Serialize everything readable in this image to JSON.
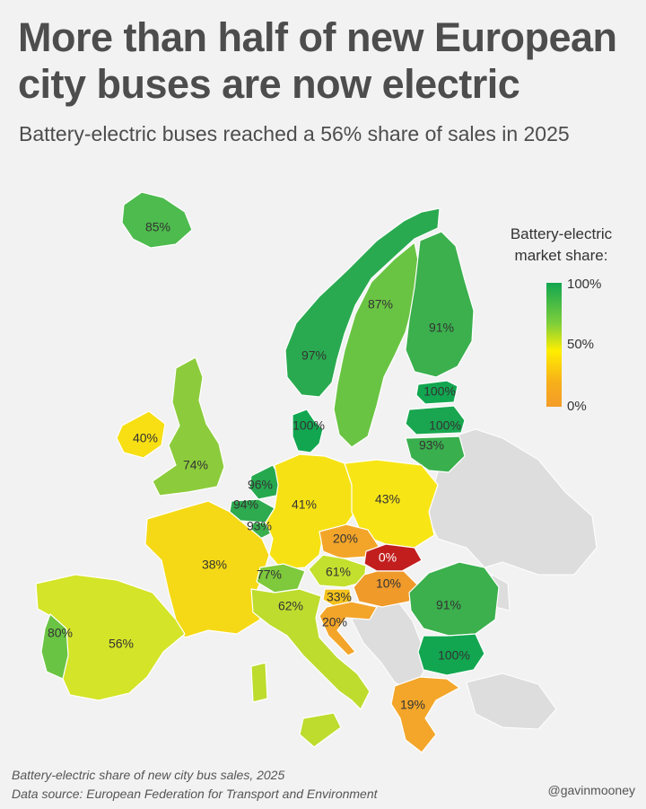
{
  "title": "More than half of new European city buses are now electric",
  "subtitle": "Battery-electric buses reached a 56% share of sales in 2025",
  "legend": {
    "title_line1": "Battery-electric",
    "title_line2": "market share:",
    "ticks": [
      "100%",
      "50%",
      "0%"
    ],
    "colors": [
      "#12a650",
      "#ffee00",
      "#f39c29"
    ]
  },
  "footer": {
    "line1": "Battery-electric share of new city bus sales, 2025",
    "line2": "Data source:  European Federation for Transport and Environment",
    "credit": "@gavinmooney"
  },
  "regions": [
    {
      "id": "iceland",
      "label": "85%",
      "color": "#4dbb4d"
    },
    {
      "id": "norway",
      "label": "97%",
      "color": "#2aaa50"
    },
    {
      "id": "sweden",
      "label": "87%",
      "color": "#6ac443"
    },
    {
      "id": "finland",
      "label": "91%",
      "color": "#3bb04d"
    },
    {
      "id": "estonia",
      "label": "100%",
      "color": "#12a650"
    },
    {
      "id": "latvia",
      "label": "100%",
      "color": "#1aa650"
    },
    {
      "id": "lithuania",
      "label": "93%",
      "color": "#3aaf4e"
    },
    {
      "id": "denmark",
      "label": "100%",
      "color": "#12a650"
    },
    {
      "id": "ireland",
      "label": "40%",
      "color": "#f7df14"
    },
    {
      "id": "uk",
      "label": "74%",
      "color": "#8ccc3c"
    },
    {
      "id": "netherlands",
      "label": "96%",
      "color": "#26a84f"
    },
    {
      "id": "belgium",
      "label": "94%",
      "color": "#2eaa4f"
    },
    {
      "id": "luxembourg",
      "label": "93%",
      "color": "#3aaf4e"
    },
    {
      "id": "germany",
      "label": "41%",
      "color": "#f6e214"
    },
    {
      "id": "poland",
      "label": "43%",
      "color": "#f8e516"
    },
    {
      "id": "france",
      "label": "38%",
      "color": "#f5d916"
    },
    {
      "id": "czechia",
      "label": "20%",
      "color": "#f3a52a"
    },
    {
      "id": "slovakia",
      "label": "0%",
      "color": "#c21e1e"
    },
    {
      "id": "austria",
      "label": "61%",
      "color": "#c4e02e"
    },
    {
      "id": "hungary",
      "label": "10%",
      "color": "#f09a2a"
    },
    {
      "id": "switzerland",
      "label": "77%",
      "color": "#7ec93c"
    },
    {
      "id": "slovenia",
      "label": "33%",
      "color": "#f4c21e"
    },
    {
      "id": "croatia",
      "label": "20%",
      "color": "#f3a52a"
    },
    {
      "id": "italy",
      "label": "62%",
      "color": "#bddc2e"
    },
    {
      "id": "romania",
      "label": "91%",
      "color": "#3bb04d"
    },
    {
      "id": "bulgaria",
      "label": "100%",
      "color": "#12a650"
    },
    {
      "id": "greece",
      "label": "19%",
      "color": "#f3a62a"
    },
    {
      "id": "spain",
      "label": "56%",
      "color": "#d4e428"
    },
    {
      "id": "portugal",
      "label": "80%",
      "color": "#6ac443"
    }
  ],
  "no_data_color": "#dddddd"
}
